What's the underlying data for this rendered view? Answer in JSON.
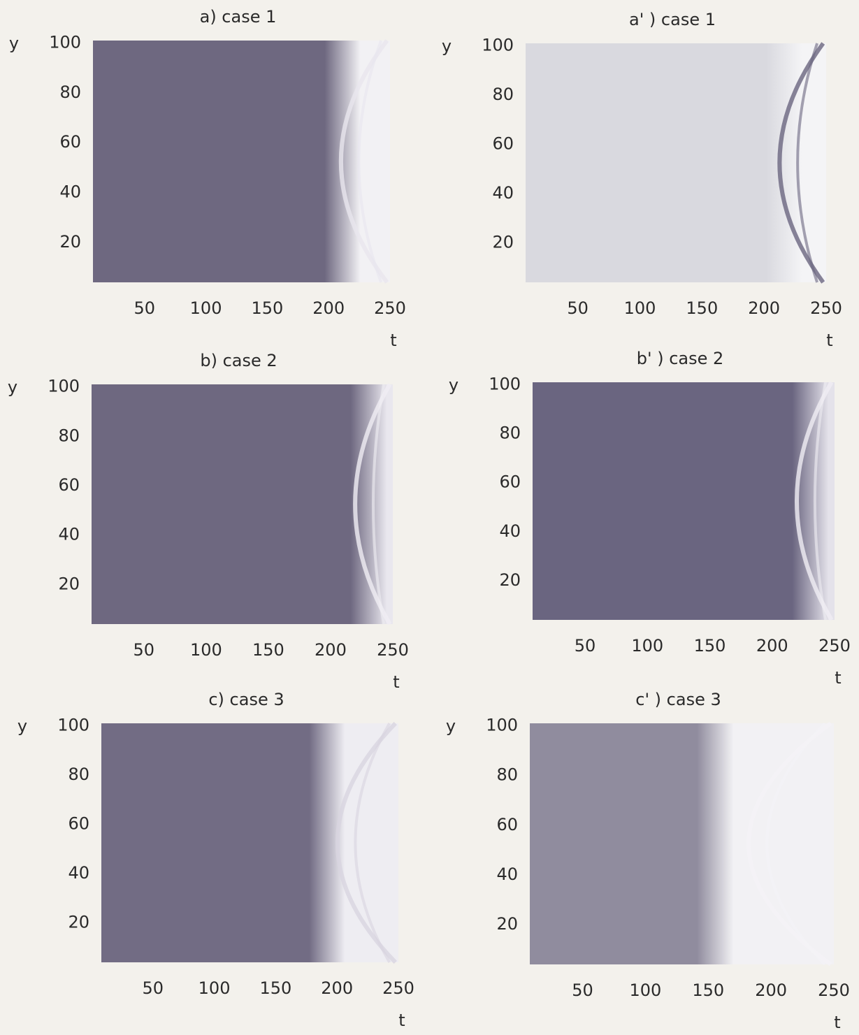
{
  "chart_data": [
    {
      "type": "image",
      "title": "a) case 1",
      "xlabel": "t",
      "ylabel": "y",
      "color": "#6e6880",
      "xlim": [
        8,
        250
      ],
      "ylim": [
        4,
        101
      ],
      "xticks": [
        50,
        100,
        150,
        200,
        250
      ],
      "yticks": [
        20,
        40,
        60,
        80,
        100
      ]
    },
    {
      "type": "image",
      "title": "a' ) case 1",
      "xlabel": "t",
      "ylabel": "y",
      "color": "#d9d9df",
      "xlim": [
        8,
        250
      ],
      "ylim": [
        4,
        101
      ],
      "xticks": [
        50,
        100,
        150,
        200,
        250
      ],
      "yticks": [
        20,
        40,
        60,
        80,
        100
      ]
    },
    {
      "type": "image",
      "title": "b) case 2",
      "xlabel": "t",
      "ylabel": "y",
      "color": "#6e6880",
      "xlim": [
        8,
        250
      ],
      "ylim": [
        4,
        101
      ],
      "xticks": [
        50,
        100,
        150,
        200,
        250
      ],
      "yticks": [
        20,
        40,
        60,
        80,
        100
      ]
    },
    {
      "type": "image",
      "title": "b' ) case 2",
      "xlabel": "t",
      "ylabel": "y",
      "color": "#6a6580",
      "xlim": [
        8,
        250
      ],
      "ylim": [
        4,
        101
      ],
      "xticks": [
        50,
        100,
        150,
        200,
        250
      ],
      "yticks": [
        20,
        40,
        60,
        80,
        100
      ]
    },
    {
      "type": "image",
      "title": "c) case 3",
      "xlabel": "t",
      "ylabel": "y",
      "color": "#726c84",
      "xlim": [
        8,
        250
      ],
      "ylim": [
        4,
        101
      ],
      "xticks": [
        50,
        100,
        150,
        200,
        250
      ],
      "yticks": [
        20,
        40,
        60,
        80,
        100
      ]
    },
    {
      "type": "image",
      "title": "c' ) case 3",
      "xlabel": "t",
      "ylabel": "y",
      "color": "#908c9e",
      "xlim": [
        8,
        250
      ],
      "ylim": [
        4,
        101
      ],
      "xticks": [
        50,
        100,
        150,
        200,
        250
      ],
      "yticks": [
        20,
        40,
        60,
        80,
        100
      ]
    }
  ]
}
